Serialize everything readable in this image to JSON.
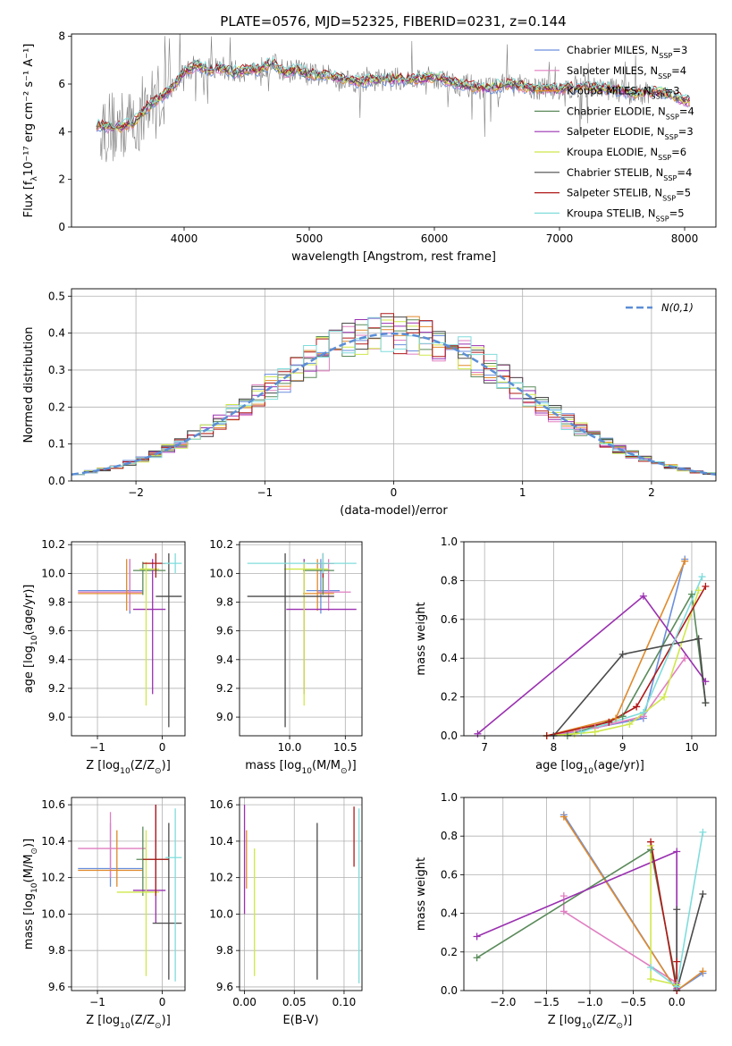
{
  "chart_data": [
    {
      "id": "spectrum",
      "type": "line",
      "title": "PLATE=0576, MJD=52325, FIBERID=0231, z=0.144",
      "xlabel": "wavelength [Angstrom, rest frame]",
      "ylabel": "Flux [f$_\\lambda$10$^{-17}$ erg cm$^{-2}$ s$^{-1}$ A$^{-1}$]",
      "xlim": [
        3100,
        8250
      ],
      "ylim": [
        0,
        8.1
      ],
      "xticks": [
        4000,
        5000,
        6000,
        7000,
        8000
      ],
      "yticks": [
        0,
        2,
        4,
        6,
        8
      ],
      "legend": "upper right",
      "data_color": "#808080",
      "series": [
        {
          "name": "Chabrier MILES, N$_{SSP}$=3",
          "color": "#6a8fde"
        },
        {
          "name": "Salpeter MILES, N$_{SSP}$=4",
          "color": "#e07ec1"
        },
        {
          "name": "Kroupa MILES, N$_{SSP}$=3",
          "color": "#e08a2c"
        },
        {
          "name": "Chabrier ELODIE, N$_{SSP}$=4",
          "color": "#5a8a5a"
        },
        {
          "name": "Salpeter ELODIE, N$_{SSP}$=3",
          "color": "#9a30b0"
        },
        {
          "name": "Kroupa ELODIE, N$_{SSP}$=6",
          "color": "#cfe84a"
        },
        {
          "name": "Chabrier STELIB, N$_{SSP}$=4",
          "color": "#4a4a4a"
        },
        {
          "name": "Salpeter STELIB, N$_{SSP}$=5",
          "color": "#b01818"
        },
        {
          "name": "Kroupa STELIB, N$_{SSP}$=5",
          "color": "#80dcdc"
        }
      ],
      "model_x": [
        3300,
        3400,
        3500,
        3600,
        3700,
        3800,
        3900,
        4000,
        4100,
        4200,
        4300,
        4400,
        4500,
        4600,
        4700,
        4800,
        4900,
        5000,
        5200,
        5400,
        5600,
        5800,
        6000,
        6200,
        6400,
        6600,
        6800,
        7000,
        7200,
        7400,
        7600,
        7800,
        8000
      ],
      "model_y": [
        4.3,
        4.2,
        4.2,
        4.4,
        5.0,
        5.4,
        5.8,
        6.5,
        6.8,
        6.6,
        6.7,
        6.5,
        6.6,
        6.6,
        6.9,
        6.5,
        6.6,
        6.4,
        6.3,
        6.1,
        6.2,
        6.2,
        6.3,
        6.0,
        5.8,
        6.0,
        5.8,
        5.8,
        5.9,
        5.8,
        5.6,
        5.7,
        5.3
      ]
    },
    {
      "id": "residuals",
      "type": "line",
      "xlabel": "(data-model)/error",
      "ylabel": "Normed distribution",
      "xlim": [
        -2.5,
        2.5
      ],
      "ylim": [
        0,
        0.52
      ],
      "xticks": [
        -2,
        -1,
        0,
        1,
        2
      ],
      "yticks": [
        0.0,
        0.1,
        0.2,
        0.3,
        0.4,
        0.5
      ],
      "legend": "upper right",
      "gauss_label": "$\\mathcal{N}(0,1)$",
      "gauss_color": "#5b8ed6",
      "bin_width": 0.1,
      "grid": true
    },
    {
      "id": "age-vs-Z",
      "type": "scatter",
      "xlabel": "Z [log$_{10}$(Z/Z$_\\odot$)]",
      "ylabel": "age  [log$_{10}$(age/yr)]",
      "xlim": [
        -1.4,
        0.35
      ],
      "ylim": [
        8.87,
        10.22
      ],
      "xticks": [
        -1,
        0
      ],
      "yticks": [
        9.0,
        9.2,
        9.4,
        9.6,
        9.8,
        10.0,
        10.2
      ],
      "grid": true,
      "errorbars": [
        {
          "color": "#6a8fde",
          "x": -0.5,
          "y": 9.88,
          "x_lo": -1.3,
          "x_hi": -0.3,
          "y_lo": 9.72,
          "y_hi": 10.1
        },
        {
          "color": "#e07ec1",
          "x": -0.5,
          "y": 9.87,
          "x_lo": -1.3,
          "x_hi": -0.3,
          "y_lo": 9.74,
          "y_hi": 10.1
        },
        {
          "color": "#e08a2c",
          "x": -0.55,
          "y": 9.86,
          "x_lo": -1.3,
          "x_hi": -0.3,
          "y_lo": 9.74,
          "y_hi": 10.1
        },
        {
          "color": "#5a8a5a",
          "x": -0.3,
          "y": 10.02,
          "x_lo": -0.45,
          "x_hi": 0.05,
          "y_lo": 9.85,
          "y_hi": 10.08
        },
        {
          "color": "#9a30b0",
          "x": -0.15,
          "y": 9.75,
          "x_lo": -0.45,
          "x_hi": 0.05,
          "y_lo": 9.16,
          "y_hi": 10.1
        },
        {
          "color": "#cfe84a",
          "x": -0.25,
          "y": 10.03,
          "x_lo": -0.35,
          "x_hi": -0.05,
          "y_lo": 9.08,
          "y_hi": 10.08
        },
        {
          "color": "#4a4a4a",
          "x": 0.1,
          "y": 9.84,
          "x_lo": -0.1,
          "x_hi": 0.3,
          "y_lo": 8.93,
          "y_hi": 10.14
        },
        {
          "color": "#b01818",
          "x": -0.1,
          "y": 10.07,
          "x_lo": -0.3,
          "x_hi": 0.05,
          "y_lo": 9.97,
          "y_hi": 10.14
        },
        {
          "color": "#80dcdc",
          "x": 0.2,
          "y": 10.07,
          "x_lo": 0.0,
          "x_hi": 0.3,
          "y_lo": 10.0,
          "y_hi": 10.14
        }
      ]
    },
    {
      "id": "age-vs-mass",
      "type": "scatter",
      "xlabel": "mass [log$_{10}$(M/M$_\\odot$)]",
      "xlim": [
        9.55,
        10.65
      ],
      "ylim": [
        8.87,
        10.22
      ],
      "xticks": [
        10.0,
        10.5
      ],
      "yticks": [
        9.0,
        9.2,
        9.4,
        9.6,
        9.8,
        10.0,
        10.2
      ],
      "grid": true,
      "errorbars": [
        {
          "color": "#6a8fde",
          "x": 10.28,
          "y": 9.88,
          "x_lo": 10.15,
          "x_hi": 10.45,
          "y_lo": 9.72,
          "y_hi": 10.1
        },
        {
          "color": "#e07ec1",
          "x": 10.35,
          "y": 9.87,
          "x_lo": 10.25,
          "x_hi": 10.55,
          "y_lo": 9.74,
          "y_hi": 10.1
        },
        {
          "color": "#e08a2c",
          "x": 10.25,
          "y": 9.86,
          "x_lo": 10.12,
          "x_hi": 10.4,
          "y_lo": 9.74,
          "y_hi": 10.1
        },
        {
          "color": "#5a8a5a",
          "x": 10.3,
          "y": 10.02,
          "x_lo": 10.12,
          "x_hi": 10.4,
          "y_lo": 9.85,
          "y_hi": 10.08
        },
        {
          "color": "#9a30b0",
          "x": 10.13,
          "y": 9.75,
          "x_lo": 9.97,
          "x_hi": 10.6,
          "y_lo": 9.16,
          "y_hi": 10.1
        },
        {
          "color": "#cfe84a",
          "x": 10.13,
          "y": 10.03,
          "x_lo": 9.95,
          "x_hi": 10.35,
          "y_lo": 9.08,
          "y_hi": 10.08
        },
        {
          "color": "#4a4a4a",
          "x": 9.96,
          "y": 9.84,
          "x_lo": 9.62,
          "x_hi": 10.4,
          "y_lo": 8.93,
          "y_hi": 10.14
        },
        {
          "color": "#b01818",
          "x": 10.3,
          "y": 10.07,
          "x_lo": 10.15,
          "x_hi": 10.4,
          "y_lo": 9.97,
          "y_hi": 10.14
        },
        {
          "color": "#80dcdc",
          "x": 10.3,
          "y": 10.07,
          "x_lo": 9.62,
          "x_hi": 10.6,
          "y_lo": 10.0,
          "y_hi": 10.14
        }
      ]
    },
    {
      "id": "weight-vs-age",
      "type": "line",
      "xlabel": "age  [log$_{10}$(age/yr)]",
      "ylabel": "mass weight",
      "xlim": [
        6.7,
        10.35
      ],
      "ylim": [
        0,
        1.0
      ],
      "xticks": [
        7,
        8,
        9,
        10
      ],
      "yticks": [
        0.0,
        0.2,
        0.4,
        0.6,
        0.8,
        1.0
      ],
      "grid": true,
      "series": [
        {
          "color": "#6a8fde",
          "x": [
            8.0,
            9.3,
            9.9
          ],
          "y": [
            0.0,
            0.09,
            0.91
          ]
        },
        {
          "color": "#e07ec1",
          "x": [
            7.9,
            8.6,
            9.3,
            9.9
          ],
          "y": [
            0.0,
            0.04,
            0.1,
            0.4
          ]
        },
        {
          "color": "#e08a2c",
          "x": [
            7.9,
            8.9,
            9.9
          ],
          "y": [
            0.0,
            0.09,
            0.9
          ]
        },
        {
          "color": "#5a8a5a",
          "x": [
            8.2,
            9.0,
            10.0,
            10.2
          ],
          "y": [
            0.0,
            0.1,
            0.73,
            0.17
          ]
        },
        {
          "color": "#9a30b0",
          "x": [
            6.9,
            9.3,
            10.2
          ],
          "y": [
            0.01,
            0.72,
            0.28
          ]
        },
        {
          "color": "#cfe84a",
          "x": [
            7.9,
            8.3,
            8.6,
            9.1,
            9.6,
            10.1
          ],
          "y": [
            0.0,
            0.01,
            0.02,
            0.06,
            0.2,
            0.75
          ]
        },
        {
          "color": "#4a4a4a",
          "x": [
            8.0,
            9.0,
            10.1,
            10.2
          ],
          "y": [
            0.0,
            0.42,
            0.5,
            0.17
          ]
        },
        {
          "color": "#b01818",
          "x": [
            7.9,
            8.8,
            9.2,
            10.2
          ],
          "y": [
            0.0,
            0.07,
            0.15,
            0.77
          ]
        },
        {
          "color": "#80dcdc",
          "x": [
            8.4,
            9.3,
            10.15
          ],
          "y": [
            0.02,
            0.12,
            0.82
          ]
        }
      ]
    },
    {
      "id": "mass-vs-Z",
      "type": "scatter",
      "xlabel": "Z [log$_{10}$(Z/Z$_\\odot$)]",
      "ylabel": "mass [log$_{10}$(M/M$_\\odot$)]",
      "xlim": [
        -1.4,
        0.35
      ],
      "ylim": [
        9.58,
        10.64
      ],
      "xticks": [
        -1,
        0
      ],
      "yticks": [
        9.6,
        9.8,
        10.0,
        10.2,
        10.4,
        10.6
      ],
      "grid": true,
      "errorbars": [
        {
          "color": "#6a8fde",
          "x": -0.8,
          "y": 10.25,
          "x_lo": -1.3,
          "x_hi": -0.3,
          "y_lo": 10.15,
          "y_hi": 10.5
        },
        {
          "color": "#e07ec1",
          "x": -0.8,
          "y": 10.36,
          "x_lo": -1.3,
          "x_hi": -0.25,
          "y_lo": 10.2,
          "y_hi": 10.56
        },
        {
          "color": "#e08a2c",
          "x": -0.7,
          "y": 10.24,
          "x_lo": -1.3,
          "x_hi": -0.3,
          "y_lo": 10.15,
          "y_hi": 10.46
        },
        {
          "color": "#5a8a5a",
          "x": -0.3,
          "y": 10.3,
          "x_lo": -0.4,
          "x_hi": 0.1,
          "y_lo": 10.1,
          "y_hi": 10.48
        },
        {
          "color": "#9a30b0",
          "x": -0.1,
          "y": 10.13,
          "x_lo": -0.45,
          "x_hi": 0.05,
          "y_lo": 9.95,
          "y_hi": 10.6
        },
        {
          "color": "#cfe84a",
          "x": -0.25,
          "y": 10.12,
          "x_lo": -0.7,
          "x_hi": -0.05,
          "y_lo": 9.66,
          "y_hi": 10.46
        },
        {
          "color": "#4a4a4a",
          "x": 0.1,
          "y": 9.95,
          "x_lo": -0.15,
          "x_hi": 0.3,
          "y_lo": 9.64,
          "y_hi": 10.5
        },
        {
          "color": "#b01818",
          "x": -0.1,
          "y": 10.3,
          "x_lo": -0.3,
          "x_hi": 0.1,
          "y_lo": 10.1,
          "y_hi": 10.6
        },
        {
          "color": "#80dcdc",
          "x": 0.2,
          "y": 10.31,
          "x_lo": 0.05,
          "x_hi": 0.3,
          "y_lo": 9.63,
          "y_hi": 10.58
        }
      ]
    },
    {
      "id": "mass-vs-ebv",
      "type": "scatter",
      "xlabel": "E(B-V)",
      "xlim": [
        -0.005,
        0.118
      ],
      "ylim": [
        9.58,
        10.64
      ],
      "xticks": [
        0.0,
        0.05,
        0.1
      ],
      "yticks": [
        9.6,
        9.8,
        10.0,
        10.2,
        10.4,
        10.6
      ],
      "grid": true,
      "errorbars": [
        {
          "color": "#e08a2c",
          "x": 0.002,
          "y": 10.3,
          "y_lo": 10.14,
          "y_hi": 10.46
        },
        {
          "color": "#9a30b0",
          "x": 0.0,
          "y": 10.3,
          "y_lo": 10.0,
          "y_hi": 10.6
        },
        {
          "color": "#cfe84a",
          "x": 0.01,
          "y": 10.0,
          "y_lo": 9.66,
          "y_hi": 10.36
        },
        {
          "color": "#4a4a4a",
          "x": 0.073,
          "y": 10.05,
          "y_lo": 9.64,
          "y_hi": 10.5
        },
        {
          "color": "#b01818",
          "x": 0.11,
          "y": 10.42,
          "y_lo": 10.26,
          "y_hi": 10.59
        },
        {
          "color": "#80dcdc",
          "x": 0.115,
          "y": 10.1,
          "y_lo": 9.62,
          "y_hi": 10.58
        }
      ]
    },
    {
      "id": "weight-vs-Z",
      "type": "line",
      "xlabel": "Z [log$_{10}$(Z/Z$_\\odot$)]",
      "ylabel": "mass weight",
      "xlim": [
        -2.45,
        0.45
      ],
      "ylim": [
        0,
        1.0
      ],
      "xticks": [
        -2.0,
        -1.5,
        -1.0,
        -0.5,
        0.0
      ],
      "yticks": [
        0.0,
        0.2,
        0.4,
        0.6,
        0.8,
        1.0
      ],
      "grid": true,
      "series": [
        {
          "color": "#6a8fde",
          "x": [
            -1.3,
            0.0,
            0.3
          ],
          "y": [
            0.91,
            0.0,
            0.09
          ]
        },
        {
          "color": "#e07ec1",
          "x": [
            -1.3,
            -1.3,
            0.0
          ],
          "y": [
            0.49,
            0.41,
            0.04
          ]
        },
        {
          "color": "#e08a2c",
          "x": [
            -1.3,
            0.0,
            0.3
          ],
          "y": [
            0.9,
            0.0,
            0.1
          ]
        },
        {
          "color": "#5a8a5a",
          "x": [
            -2.3,
            -0.3,
            0.0
          ],
          "y": [
            0.17,
            0.73,
            0.03
          ]
        },
        {
          "color": "#9a30b0",
          "x": [
            -2.3,
            0.0,
            0.0
          ],
          "y": [
            0.28,
            0.72,
            0.01
          ]
        },
        {
          "color": "#cfe84a",
          "x": [
            -0.3,
            -0.3,
            0.0
          ],
          "y": [
            0.75,
            0.06,
            0.03
          ]
        },
        {
          "color": "#4a4a4a",
          "x": [
            0.3,
            0.0,
            0.0
          ],
          "y": [
            0.5,
            0.0,
            0.42
          ]
        },
        {
          "color": "#b01818",
          "x": [
            -0.3,
            0.0,
            0.0
          ],
          "y": [
            0.77,
            0.0,
            0.15
          ]
        },
        {
          "color": "#80dcdc",
          "x": [
            0.3,
            0.0,
            -0.3
          ],
          "y": [
            0.82,
            0.02,
            0.12
          ]
        }
      ]
    }
  ]
}
